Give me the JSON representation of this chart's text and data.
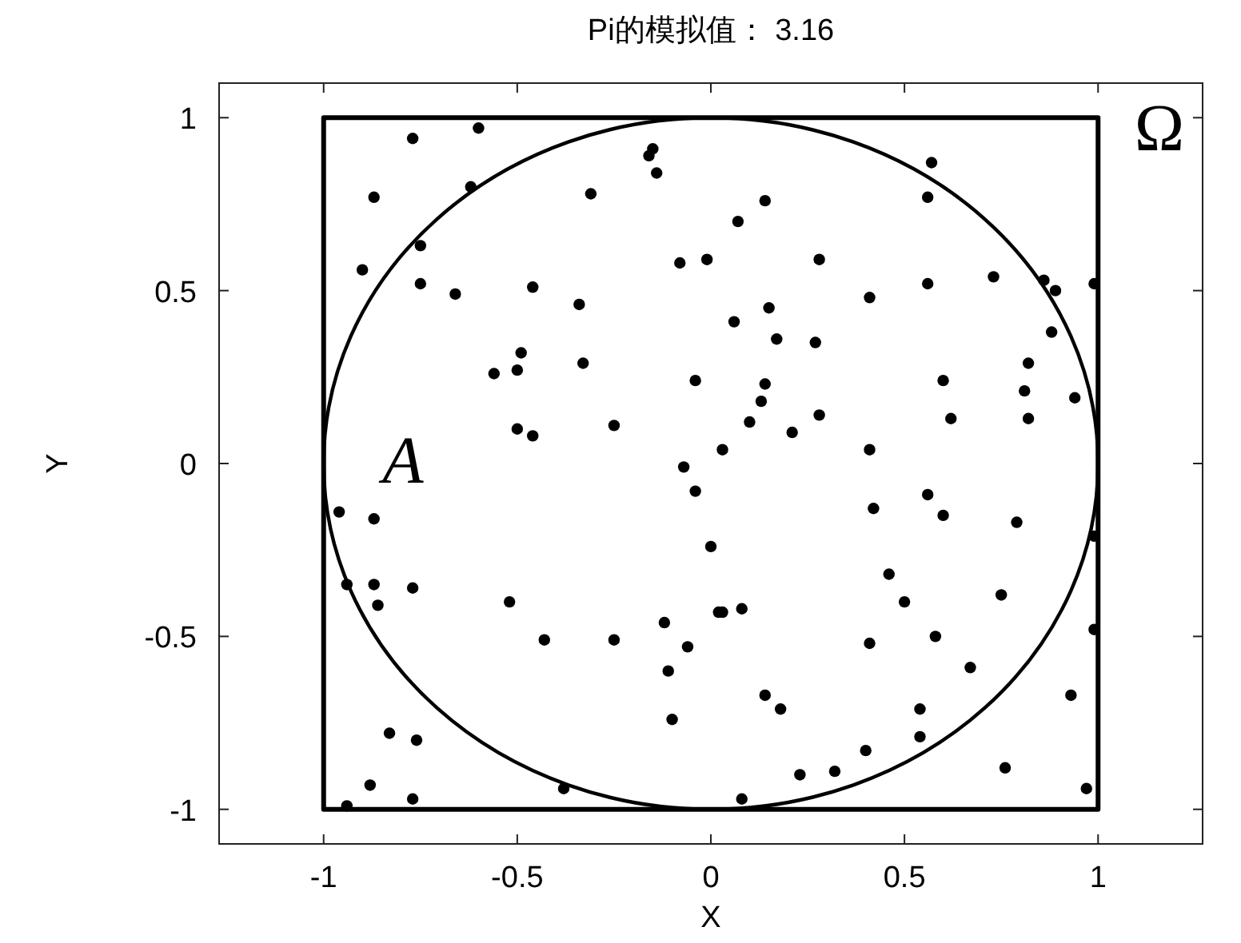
{
  "chart_data": {
    "type": "scatter",
    "title": "Pi的模拟值： 3.16",
    "xlabel": "X",
    "ylabel": "Y",
    "xlim": [
      -1.27,
      1.27
    ],
    "ylim": [
      -1.1,
      1.1
    ],
    "xticks": [
      -1,
      -0.5,
      0,
      0.5,
      1
    ],
    "yticks": [
      -1,
      -0.5,
      0,
      0.5,
      1
    ],
    "grid": false,
    "annotations": [
      "Ω",
      "A"
    ],
    "series": [
      {
        "type": "scatter",
        "color": "#000000",
        "marker": "circle",
        "x": [
          -0.6,
          -0.77,
          -0.87,
          -0.62,
          -0.16,
          -0.15,
          -0.14,
          -0.31,
          -0.75,
          -0.9,
          -0.75,
          -0.66,
          -0.46,
          -0.34,
          -0.08,
          -0.01,
          -0.49,
          -0.5,
          -0.56,
          -0.33,
          -0.04,
          -0.5,
          -0.46,
          -0.25,
          -0.07,
          0.57,
          0.56,
          0.14,
          0.07,
          0.28,
          0.56,
          0.73,
          0.86,
          0.89,
          0.99,
          0.41,
          0.15,
          0.06,
          0.17,
          0.27,
          0.88,
          0.82,
          0.6,
          0.14,
          0.13,
          0.81,
          0.94,
          0.1,
          0.28,
          0.21,
          0.62,
          0.82,
          0.03,
          0.41,
          -0.96,
          -0.87,
          -0.94,
          -0.87,
          -0.77,
          -0.86,
          -0.52,
          -0.43,
          -0.25,
          -0.04,
          0.0,
          -0.12,
          -0.06,
          -0.11,
          -0.1,
          0.02,
          -0.83,
          -0.76,
          -0.88,
          -0.77,
          -0.94,
          -0.38,
          0.03,
          0.08,
          0.42,
          0.56,
          0.6,
          0.79,
          0.99,
          0.46,
          0.5,
          0.75,
          0.41,
          0.58,
          0.67,
          0.99,
          0.14,
          0.18,
          0.54,
          0.54,
          0.93,
          0.4,
          0.23,
          0.32,
          0.08,
          0.76,
          0.97
        ],
        "values": [
          0.97,
          0.94,
          0.77,
          0.8,
          0.89,
          0.91,
          0.84,
          0.78,
          0.63,
          0.56,
          0.52,
          0.49,
          0.51,
          0.46,
          0.58,
          0.59,
          0.32,
          0.27,
          0.26,
          0.29,
          0.24,
          0.1,
          0.08,
          0.11,
          -0.01,
          0.87,
          0.77,
          0.76,
          0.7,
          0.59,
          0.52,
          0.54,
          0.53,
          0.5,
          0.52,
          0.48,
          0.45,
          0.41,
          0.36,
          0.35,
          0.38,
          0.29,
          0.24,
          0.23,
          0.18,
          0.21,
          0.19,
          0.12,
          0.14,
          0.09,
          0.13,
          0.13,
          0.04,
          0.04,
          -0.14,
          -0.16,
          -0.35,
          -0.35,
          -0.36,
          -0.41,
          -0.4,
          -0.51,
          -0.51,
          -0.08,
          -0.24,
          -0.46,
          -0.53,
          -0.6,
          -0.74,
          -0.43,
          -0.78,
          -0.8,
          -0.93,
          -0.97,
          -0.99,
          -0.94,
          -0.43,
          -0.42,
          -0.13,
          -0.09,
          -0.15,
          -0.17,
          -0.21,
          -0.32,
          -0.4,
          -0.38,
          -0.52,
          -0.5,
          -0.59,
          -0.48,
          -0.67,
          -0.71,
          -0.71,
          -0.79,
          -0.67,
          -0.83,
          -0.9,
          -0.89,
          -0.97,
          -0.88,
          -0.94
        ]
      }
    ]
  }
}
